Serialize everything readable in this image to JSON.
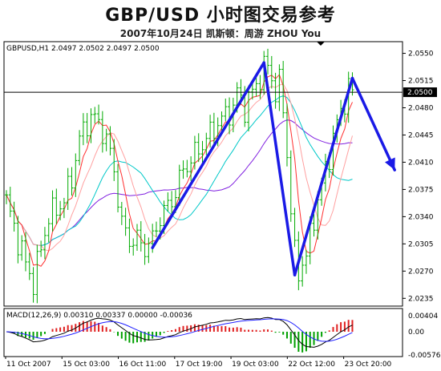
{
  "header": {
    "title": "GBP/USD  小时图交易参考",
    "subtitle": "2007年10月24日   凯斯顿：周游 ZHOU You"
  },
  "chart_data": [
    {
      "type": "candlestick",
      "info_label": "GBPUSD,H1  2.0497 2.0502 2.0497 2.0500",
      "current_price_label": "2.0500",
      "current_price": 2.05,
      "ylim": [
        2.0225,
        2.0565
      ],
      "y_ticks": [
        "2.0550",
        "2.0515",
        "2.0480",
        "2.0445",
        "2.0410",
        "2.0375",
        "2.0340",
        "2.0305",
        "2.0270",
        "2.0235"
      ],
      "x_ticks": [
        "11 Oct 2007",
        "15 Oct 03:00",
        "16 Oct 11:00",
        "17 Oct 19:00",
        "19 Oct 03:00",
        "22 Oct 12:00",
        "23 Oct 20:00"
      ],
      "grid": false,
      "close_path": [
        [
          0,
          2.036
        ],
        [
          3,
          2.031
        ],
        [
          5,
          2.028
        ],
        [
          7,
          2.0255
        ],
        [
          9,
          2.03
        ],
        [
          11,
          2.034
        ],
        [
          13,
          2.035
        ],
        [
          15,
          2.036
        ],
        [
          17,
          2.039
        ],
        [
          19,
          2.044
        ],
        [
          21,
          2.046
        ],
        [
          22,
          2.047
        ],
        [
          24,
          2.046
        ],
        [
          26,
          2.044
        ],
        [
          28,
          2.04
        ],
        [
          30,
          2.033
        ],
        [
          32,
          2.031
        ],
        [
          34,
          2.031
        ],
        [
          36,
          2.03
        ],
        [
          38,
          2.031
        ],
        [
          40,
          2.034
        ],
        [
          43,
          2.036
        ],
        [
          46,
          2.04
        ],
        [
          49,
          2.042
        ],
        [
          52,
          2.044
        ],
        [
          55,
          2.046
        ],
        [
          57,
          2.047
        ],
        [
          59,
          2.048
        ],
        [
          60,
          2.05
        ],
        [
          62,
          2.048
        ],
        [
          64,
          2.05
        ],
        [
          66,
          2.052
        ],
        [
          67,
          2.053
        ],
        [
          68,
          2.0535
        ],
        [
          70,
          2.05
        ],
        [
          71,
          2.051
        ],
        [
          72,
          2.048
        ],
        [
          73,
          2.042
        ],
        [
          74,
          2.035
        ],
        [
          75,
          2.029
        ],
        [
          76,
          2.027
        ],
        [
          78,
          2.029
        ],
        [
          80,
          2.034
        ],
        [
          82,
          2.038
        ],
        [
          84,
          2.042
        ],
        [
          86,
          2.046
        ],
        [
          88,
          2.049
        ],
        [
          89,
          2.0505
        ],
        [
          90,
          2.05
        ]
      ],
      "annotation_arrows": [
        [
          [
            38,
            2.03
          ],
          [
            67,
            2.0538
          ]
        ],
        [
          [
            67,
            2.0538
          ],
          [
            75,
            2.0265
          ]
        ],
        [
          [
            75,
            2.0265
          ],
          [
            90,
            2.0518
          ]
        ],
        [
          [
            90,
            2.0518
          ],
          [
            101,
            2.04
          ]
        ]
      ],
      "colors": {
        "candle": "#00aa00",
        "arrow": "#1a1ae6",
        "ma_red": "#ff3030",
        "ma_pink": "#ffa0a0",
        "ma_cyan": "#00c8c8",
        "ma_purple": "#8020e0"
      }
    },
    {
      "type": "macd",
      "info_label": "MACD(12,26,9) 0.00310 0.00337 0.00000 -0.00036",
      "ylim": [
        -0.0062,
        0.0058
      ],
      "y_ticks": [
        "0.00404",
        "0.00",
        "-0.00576"
      ],
      "colors": {
        "histogram_up": "#e02020",
        "histogram_down": "#00a000",
        "macd": "#000000",
        "signal": "#2020ff"
      }
    }
  ]
}
